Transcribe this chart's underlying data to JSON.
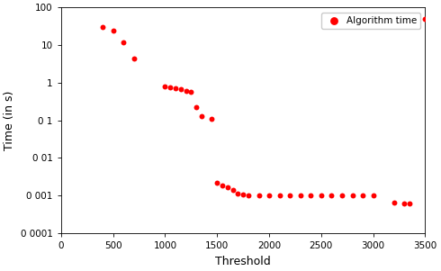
{
  "x": [
    400,
    500,
    600,
    700,
    1000,
    1050,
    1100,
    1150,
    1200,
    1250,
    1300,
    1350,
    1450,
    1500,
    1550,
    1600,
    1650,
    1700,
    1750,
    1800,
    1900,
    2000,
    2100,
    2200,
    2300,
    2400,
    2500,
    2600,
    2700,
    2800,
    2900,
    3000,
    3200,
    3300,
    3350,
    3500
  ],
  "y": [
    30,
    25,
    12,
    4.5,
    0.8,
    0.75,
    0.72,
    0.68,
    0.62,
    0.58,
    0.22,
    0.13,
    0.11,
    0.0022,
    0.0019,
    0.0017,
    0.0014,
    0.00115,
    0.00108,
    0.001,
    0.001,
    0.001,
    0.001,
    0.001,
    0.001,
    0.001,
    0.001,
    0.001,
    0.001,
    0.001,
    0.001,
    0.001,
    0.00065,
    0.00062,
    0.0006,
    50
  ],
  "dot_color": "#ff0000",
  "dot_size": 18,
  "xlabel": "Threshold",
  "ylabel": "Time (in s)",
  "xlim": [
    0,
    3500
  ],
  "ylim_log": [
    0.0001,
    100
  ],
  "yticks": [
    0.0001,
    0.001,
    0.01,
    0.1,
    1,
    10,
    100
  ],
  "ytick_labels": [
    "0 0001",
    "0 001",
    "0 01",
    "0 1",
    "1",
    "10",
    "100"
  ],
  "xticks": [
    0,
    500,
    1000,
    1500,
    2000,
    2500,
    3000,
    3500
  ],
  "legend_label": "Algorithm time",
  "bg_color": "#ffffff"
}
